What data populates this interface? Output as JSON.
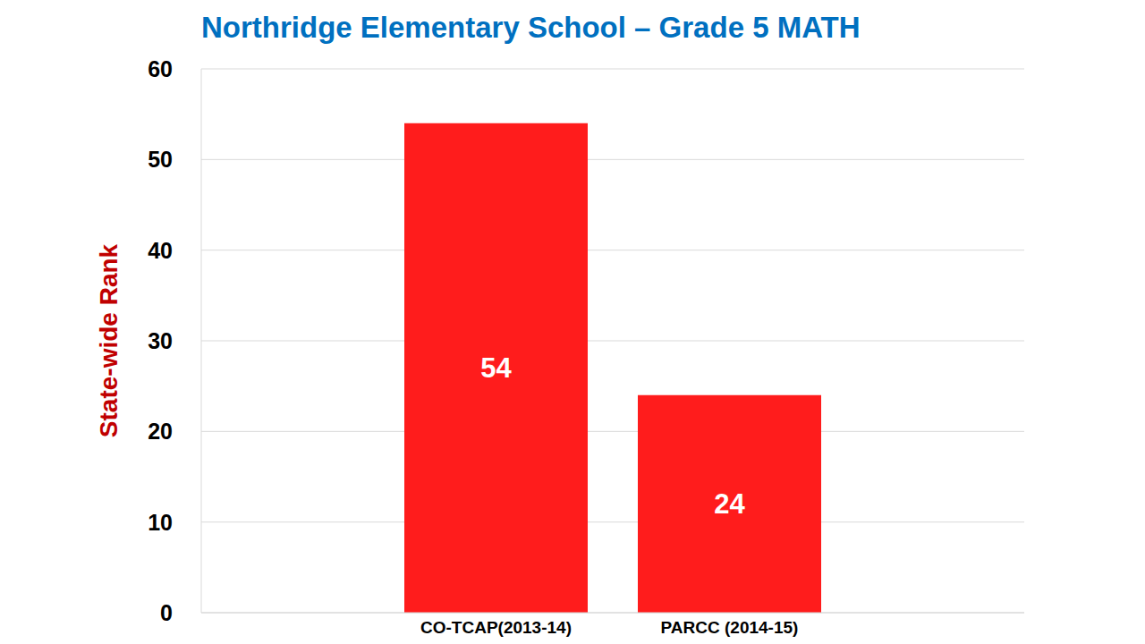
{
  "chart_data": {
    "type": "bar",
    "title": "Northridge Elementary School – Grade 5 MATH",
    "y_label": "State-wide Rank",
    "categories": [
      "CO-TCAP(2013-14)",
      "PARCC (2014-15)"
    ],
    "values": [
      54,
      24
    ],
    "color": "#ff1c1c",
    "ylim": [
      0,
      60
    ],
    "yticks": [
      0,
      10,
      20,
      30,
      40,
      50,
      60
    ],
    "grid": true,
    "data_labels": true
  }
}
